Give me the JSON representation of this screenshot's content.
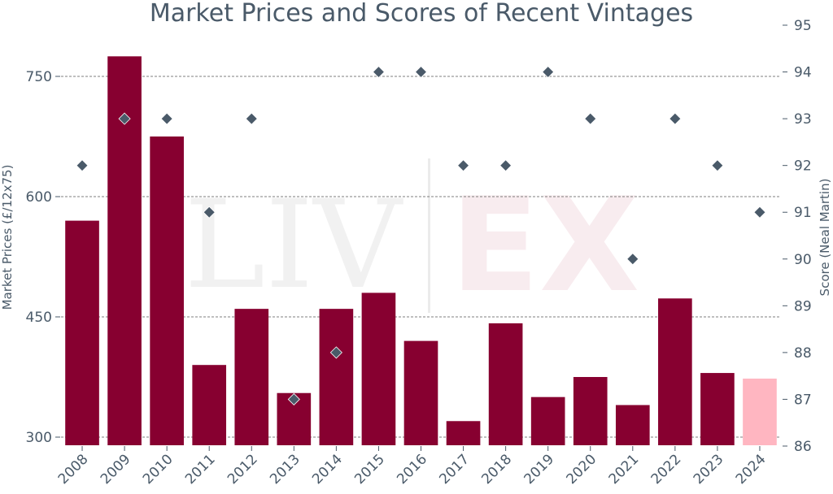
{
  "chart_data": {
    "type": "bar",
    "title": "Market Prices and Scores of Recent Vintages",
    "categories": [
      "2008",
      "2009",
      "2010",
      "2011",
      "2012",
      "2013",
      "2014",
      "2015",
      "2016",
      "2017",
      "2018",
      "2019",
      "2020",
      "2021",
      "2022",
      "2023",
      "2024"
    ],
    "series": [
      {
        "name": "Market Prices",
        "axis": "left",
        "values": [
          570,
          775,
          675,
          390,
          460,
          355,
          460,
          480,
          420,
          320,
          442,
          350,
          375,
          340,
          473,
          380,
          373
        ],
        "colors": [
          "#870030",
          "#870030",
          "#870030",
          "#870030",
          "#870030",
          "#870030",
          "#870030",
          "#870030",
          "#870030",
          "#870030",
          "#870030",
          "#870030",
          "#870030",
          "#870030",
          "#870030",
          "#870030",
          "#ffb6c1"
        ]
      },
      {
        "name": "Score (Neal Martin)",
        "axis": "right",
        "marker": "diamond",
        "values": [
          92,
          93,
          93,
          91,
          93,
          87,
          88,
          94,
          94,
          92,
          92,
          94,
          93,
          90,
          93,
          92,
          91
        ],
        "color": "#4a5a69"
      }
    ],
    "ylabel_left": "Market Prices (£/12x75)",
    "ylabel_right": "Score (Neal Martin)",
    "yticks_left": [
      300,
      450,
      600,
      750
    ],
    "yticks_right": [
      86,
      87,
      88,
      89,
      90,
      91,
      92,
      93,
      94,
      95
    ],
    "ylim_left": [
      290,
      800
    ],
    "ylim_right": [
      86,
      95
    ],
    "grid": true,
    "watermark": "LIV-EX"
  },
  "colors": {
    "bar": "#870030",
    "bar_highlight": "#ffb6c1",
    "marker": "#4a5a69",
    "text": "#4a5a69"
  }
}
